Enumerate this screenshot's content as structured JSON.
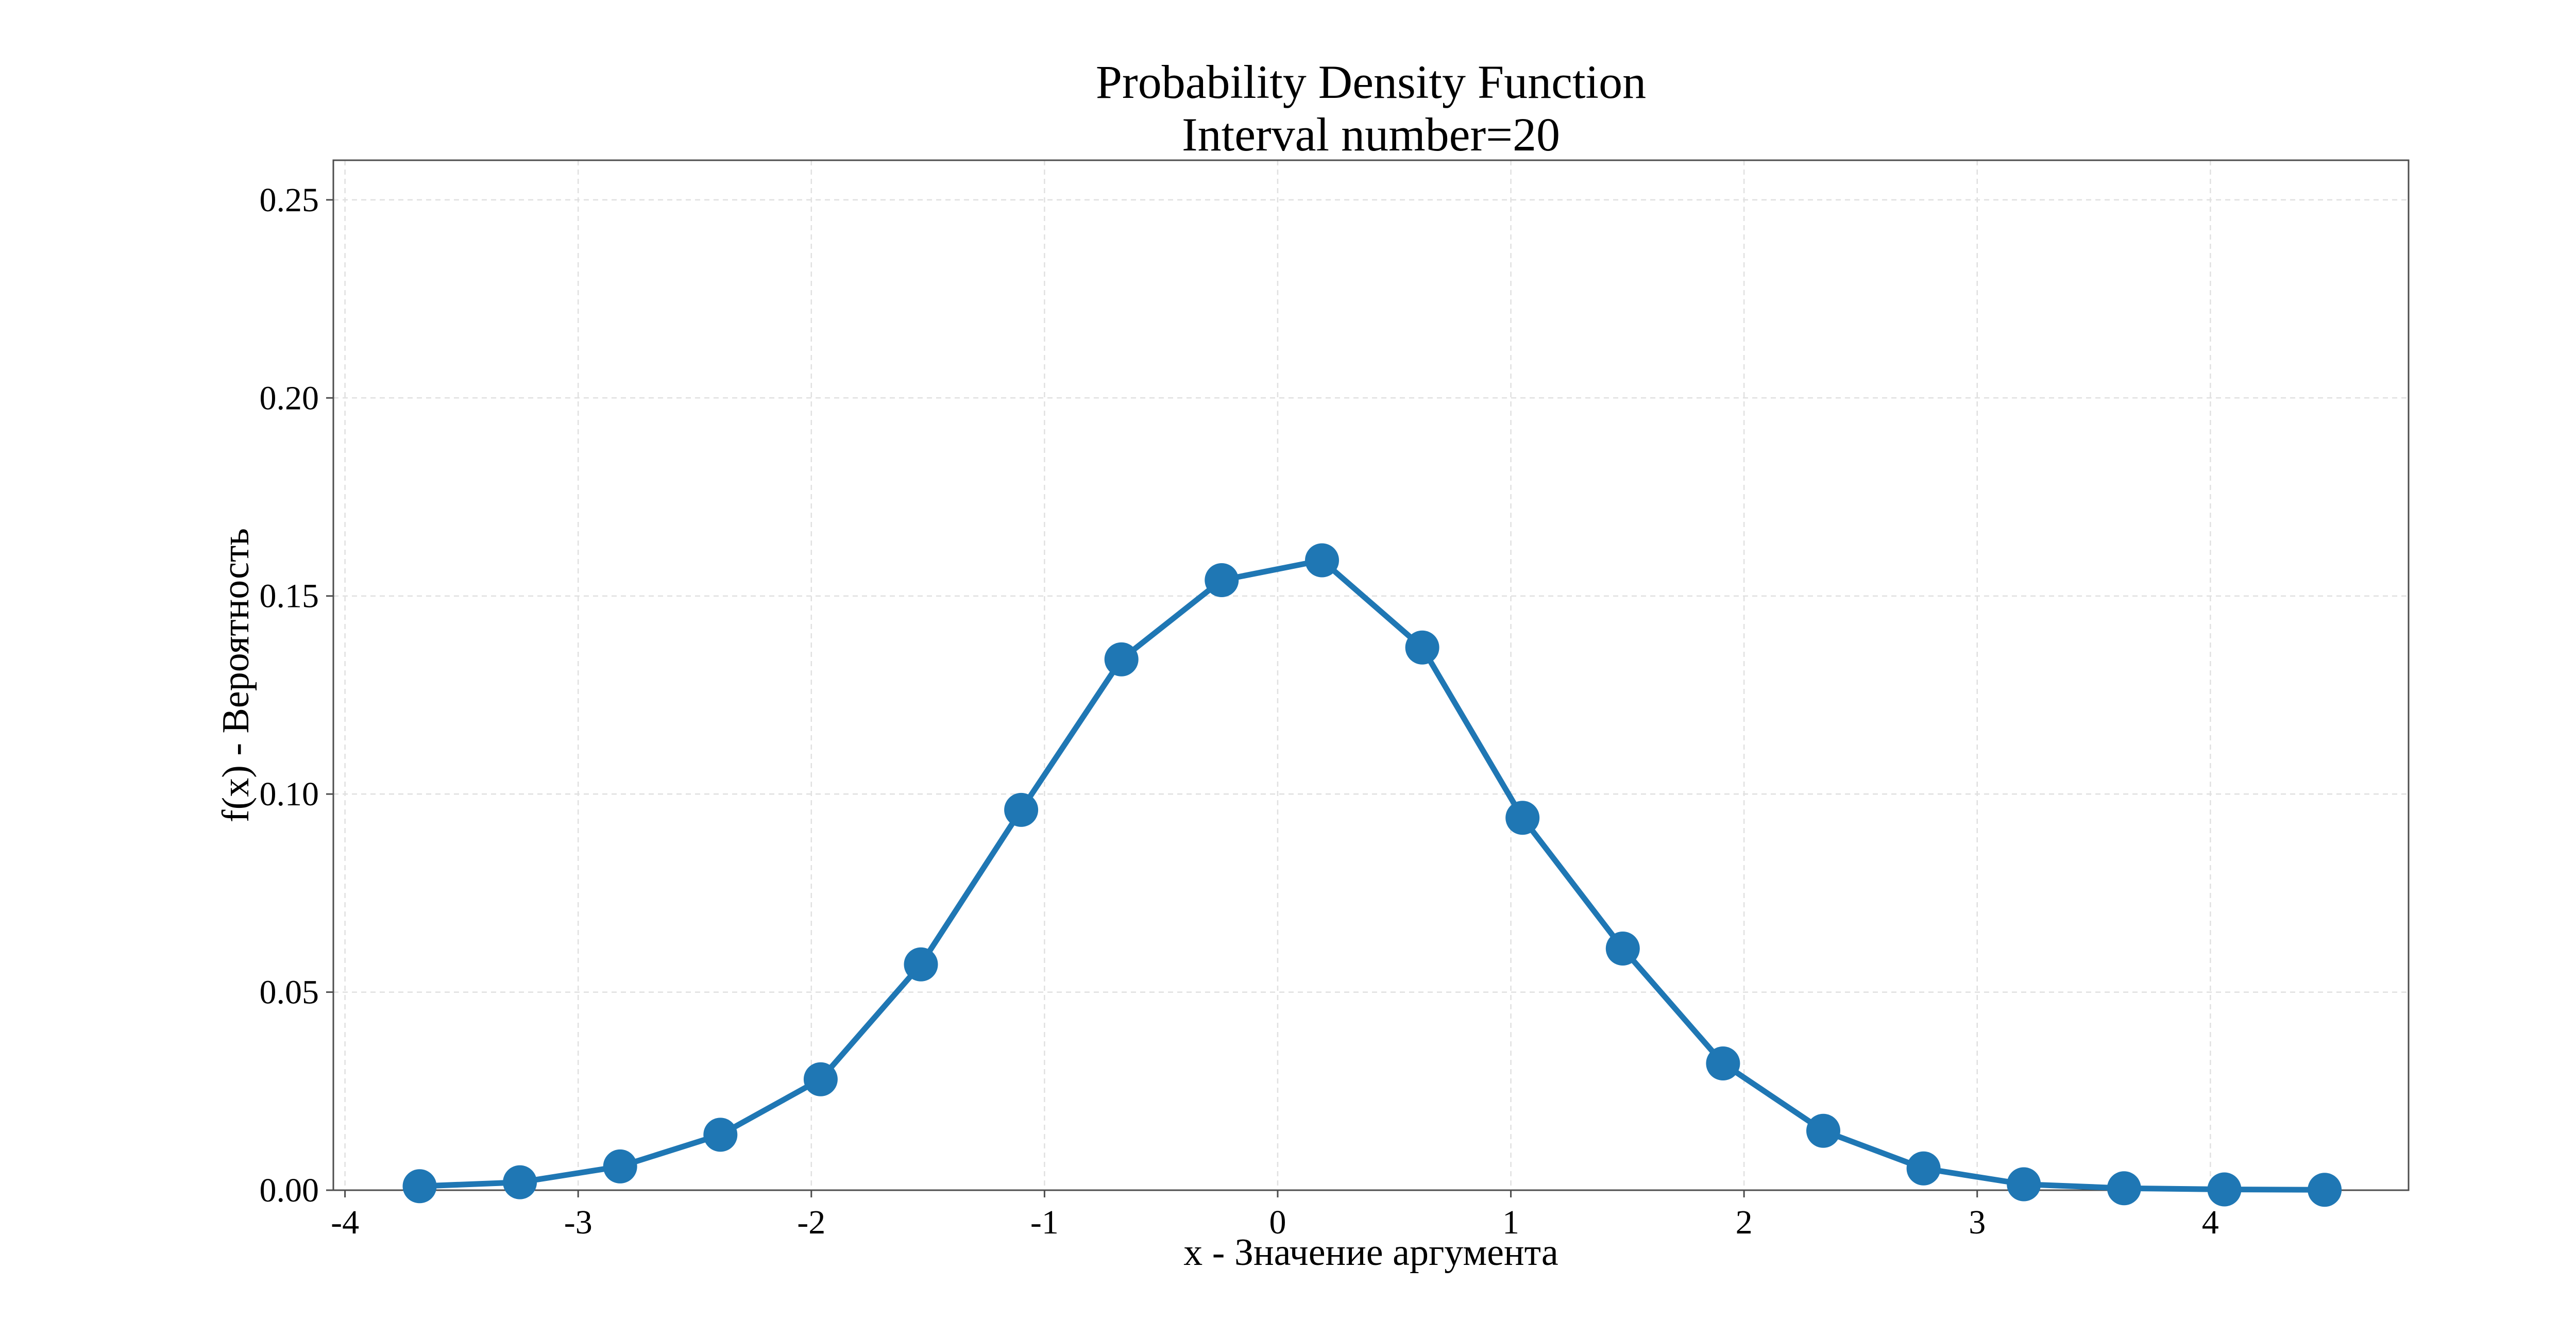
{
  "chart_data": {
    "type": "line",
    "title": "Probability Density Function",
    "subtitle": "Interval number=20",
    "xlabel": "x - Значение аргумента",
    "ylabel": "f(x) - Вероятность",
    "xlim": [
      -4.05,
      4.85
    ],
    "ylim": [
      0.0,
      0.26
    ],
    "xticks": [
      -4,
      -3,
      -2,
      -1,
      0,
      1,
      2,
      3,
      4
    ],
    "xtick_labels": [
      "-4",
      "-3",
      "-2",
      "-1",
      "0",
      "1",
      "2",
      "3",
      "4"
    ],
    "yticks": [
      0.0,
      0.05,
      0.1,
      0.15,
      0.2,
      0.25
    ],
    "ytick_labels": [
      "0.00",
      "0.05",
      "0.10",
      "0.15",
      "0.20",
      "0.25"
    ],
    "grid": true,
    "legend": "none",
    "series": [
      {
        "color": "#1f77b4",
        "marker": "circle",
        "x": [
          -3.68,
          -3.25,
          -2.82,
          -2.39,
          -1.96,
          -1.53,
          -1.1,
          -0.67,
          -0.24,
          0.19,
          0.62,
          1.05,
          1.48,
          1.91,
          2.34,
          2.77,
          3.2,
          3.63,
          4.06,
          4.49
        ],
        "y": [
          0.001,
          0.002,
          0.006,
          0.014,
          0.028,
          0.057,
          0.096,
          0.134,
          0.154,
          0.159,
          0.137,
          0.094,
          0.061,
          0.032,
          0.015,
          0.0055,
          0.0015,
          0.0005,
          0.0002,
          0.0001
        ]
      }
    ]
  }
}
